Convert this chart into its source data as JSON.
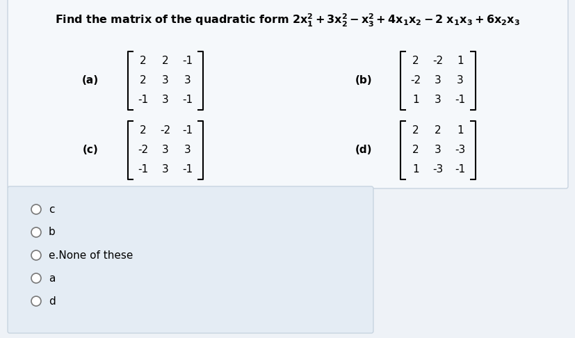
{
  "bg_color": "#eef2f7",
  "white_box_color": "#f5f8fb",
  "answer_box_color": "#e4ecf4",
  "matrix_a_label": "(a)",
  "matrix_a": [
    [
      2,
      2,
      -1
    ],
    [
      2,
      3,
      3
    ],
    [
      -1,
      3,
      -1
    ]
  ],
  "matrix_b_label": "(b)",
  "matrix_b": [
    [
      2,
      -2,
      1
    ],
    [
      -2,
      3,
      3
    ],
    [
      1,
      3,
      -1
    ]
  ],
  "matrix_c_label": "(c)",
  "matrix_c": [
    [
      2,
      -2,
      -1
    ],
    [
      -2,
      3,
      3
    ],
    [
      -1,
      3,
      -1
    ]
  ],
  "matrix_d_label": "(d)",
  "matrix_d": [
    [
      2,
      2,
      1
    ],
    [
      2,
      3,
      -3
    ],
    [
      1,
      -3,
      -1
    ]
  ],
  "options": [
    "c",
    "b",
    "e.None of these",
    "a",
    "d"
  ],
  "font_size_title": 11.5,
  "font_size_matrix": 11,
  "font_size_label": 11,
  "font_size_options": 11
}
